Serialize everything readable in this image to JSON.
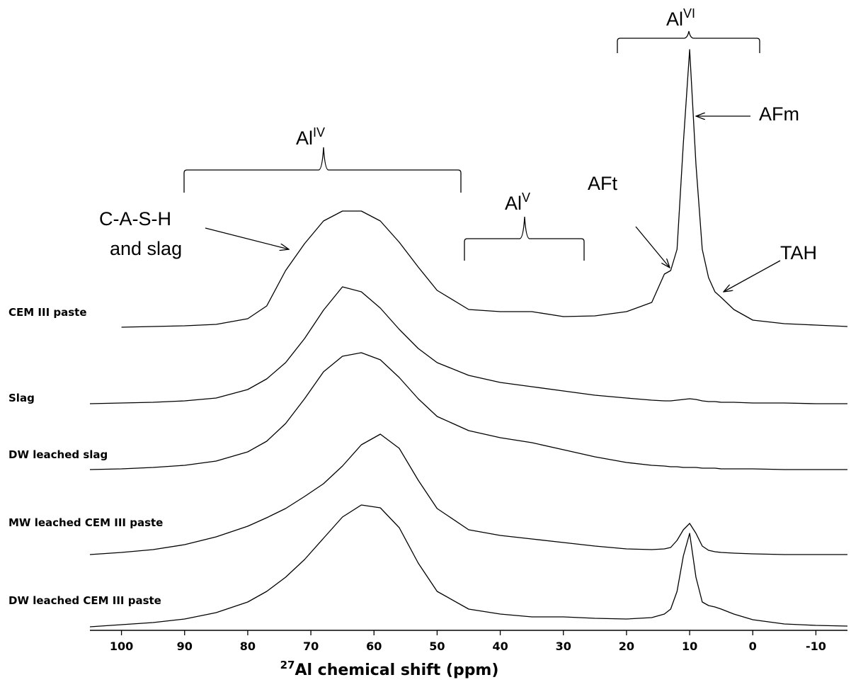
{
  "chart_data": {
    "type": "line",
    "x_label": {
      "sup": "27",
      "text": "Al chemical shift (ppm)"
    },
    "xlim": [
      105,
      -15
    ],
    "xticks": [
      100,
      90,
      80,
      70,
      60,
      50,
      40,
      30,
      20,
      10,
      0,
      -10
    ],
    "x": [
      105,
      100,
      95,
      90,
      85,
      80,
      77,
      74,
      71,
      68,
      65,
      62,
      59,
      56,
      53,
      50,
      45,
      40,
      35,
      30,
      25,
      20,
      16,
      14,
      13,
      12,
      11,
      10,
      9,
      8,
      7,
      6,
      5,
      3,
      0,
      -5,
      -10,
      -15
    ],
    "series": [
      {
        "name": "CEM III paste",
        "color": "#000000",
        "values": [
          null,
          0,
          1,
          2,
          4,
          12,
          30,
          80,
          118,
          150,
          164,
          164,
          150,
          120,
          85,
          52,
          25,
          22,
          22,
          15,
          16,
          22,
          35,
          75,
          80,
          110,
          260,
          392,
          230,
          110,
          70,
          50,
          42,
          25,
          10,
          5,
          3,
          1
        ]
      },
      {
        "name": "Slag",
        "color": "#000000",
        "values": [
          0,
          1,
          2,
          4,
          8,
          20,
          35,
          58,
          92,
          132,
          165,
          158,
          135,
          105,
          78,
          58,
          40,
          30,
          24,
          18,
          12,
          8,
          5,
          4,
          4,
          5,
          6,
          7,
          6,
          4,
          3,
          3,
          2,
          2,
          1,
          1,
          0,
          0
        ]
      },
      {
        "name": "DW leached slag",
        "color": "#000000",
        "values": [
          0,
          1,
          3,
          6,
          12,
          25,
          40,
          65,
          100,
          138,
          160,
          165,
          155,
          130,
          100,
          75,
          55,
          45,
          38,
          28,
          18,
          10,
          6,
          5,
          4,
          4,
          3,
          3,
          3,
          2,
          2,
          2,
          1,
          1,
          1,
          0,
          0,
          0
        ]
      },
      {
        "name": "MW leached CEM III paste",
        "color": "#000000",
        "values": [
          0,
          3,
          7,
          14,
          25,
          40,
          52,
          65,
          82,
          100,
          125,
          155,
          170,
          150,
          105,
          65,
          35,
          27,
          22,
          17,
          12,
          8,
          7,
          8,
          10,
          20,
          35,
          44,
          30,
          12,
          6,
          4,
          3,
          2,
          1,
          0,
          0,
          0
        ]
      },
      {
        "name": "DW leached CEM III paste",
        "color": "#000000",
        "values": [
          0,
          3,
          6,
          11,
          20,
          35,
          50,
          70,
          95,
          125,
          155,
          172,
          168,
          140,
          90,
          50,
          25,
          18,
          14,
          14,
          12,
          11,
          13,
          18,
          25,
          50,
          100,
          132,
          70,
          35,
          30,
          28,
          25,
          18,
          10,
          4,
          2,
          1
        ]
      }
    ],
    "annotations": [
      {
        "text": "Al",
        "sup": "VI"
      },
      {
        "text": "Al",
        "sup": "IV"
      },
      {
        "text": "Al",
        "sup": "V"
      },
      {
        "text": "C-A-S-H"
      },
      {
        "text": "and slag"
      },
      {
        "text": "AFt"
      },
      {
        "text": "AFm"
      },
      {
        "text": "TAH"
      }
    ]
  }
}
